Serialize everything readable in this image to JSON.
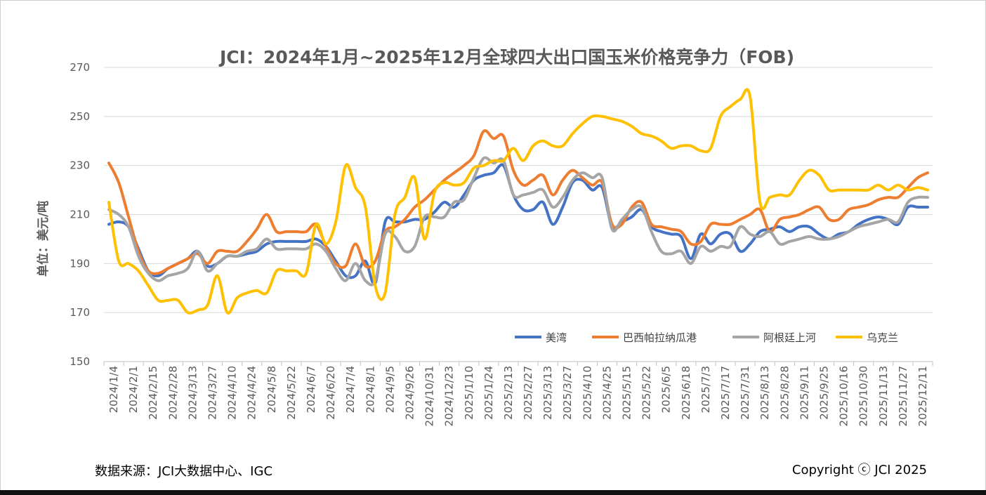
{
  "chart_data": {
    "type": "line",
    "title": "JCI：2024年1月~2025年12月全球四大出口国玉米价格竞争力（FOB)",
    "ylabel": "单位：美元/吨",
    "ylim": [
      150,
      270
    ],
    "yticks": [
      150,
      170,
      190,
      210,
      230,
      250,
      270
    ],
    "grid": true,
    "legend_position": "bottom-right",
    "x_tick_labels": [
      "2024/1/4",
      "2024/2/1",
      "2024/2/15",
      "2024/2/28",
      "2024/3/13",
      "2024/3/27",
      "2024/4/10",
      "2024/4/24",
      "2024/5/8",
      "2024/5/22",
      "2024/6/7",
      "2024/6/20",
      "2024/7/4",
      "2024/8/1",
      "2024/9/5",
      "2024/9/26",
      "2024/10/31",
      "2024/12/23",
      "2025/1/10",
      "2025/1/24",
      "2025/2/13",
      "2025/2/27",
      "2025/3/13",
      "2025/3/27",
      "2025/4/10",
      "2025/4/25",
      "2025/5/15",
      "2025/5/22",
      "2025/6/5",
      "2025/6/18",
      "2025/7/3",
      "2025/7/17",
      "2025/7/31",
      "2025/8/13",
      "2025/8/28",
      "2025/9/11",
      "2025/9/25",
      "2025/10/16",
      "2025/10/30",
      "2025/11/13",
      "2025/11/27",
      "2025/12/11"
    ],
    "x": [
      "2024/1/4",
      "2024/1/18",
      "2024/2/1",
      "2024/2/8",
      "2024/2/15",
      "2024/2/22",
      "2024/2/28",
      "2024/3/6",
      "2024/3/13",
      "2024/3/20",
      "2024/3/27",
      "2024/4/3",
      "2024/4/10",
      "2024/4/17",
      "2024/4/24",
      "2024/5/1",
      "2024/5/8",
      "2024/5/15",
      "2024/5/22",
      "2024/5/29",
      "2024/6/7",
      "2024/6/13",
      "2024/6/20",
      "2024/6/27",
      "2024/7/4",
      "2024/7/18",
      "2024/8/1",
      "2024/8/15",
      "2024/9/5",
      "2024/9/12",
      "2024/9/26",
      "2024/10/10",
      "2024/10/31",
      "2024/11/28",
      "2024/12/23",
      "2024/12/30",
      "2025/1/10",
      "2025/1/17",
      "2025/1/24",
      "2025/2/6",
      "2025/2/13",
      "2025/2/20",
      "2025/2/27",
      "2025/3/6",
      "2025/3/13",
      "2025/3/20",
      "2025/3/27",
      "2025/4/3",
      "2025/4/10",
      "2025/4/17",
      "2025/4/25",
      "2025/5/8",
      "2025/5/15",
      "2025/5/19",
      "2025/5/22",
      "2025/5/29",
      "2025/6/5",
      "2025/6/12",
      "2025/6/18",
      "2025/6/26",
      "2025/7/3",
      "2025/7/10",
      "2025/7/17",
      "2025/7/24",
      "2025/7/31",
      "2025/8/7",
      "2025/8/13",
      "2025/8/21",
      "2025/8/28",
      "2025/9/4",
      "2025/9/11",
      "2025/9/18",
      "2025/9/25",
      "2025/10/9",
      "2025/10/16",
      "2025/10/23",
      "2025/10/30",
      "2025/11/6",
      "2025/11/13",
      "2025/11/20",
      "2025/11/27",
      "2025/12/4",
      "2025/12/11",
      "2025/12/18"
    ],
    "series": [
      {
        "name": "美湾",
        "color": "#4472C4",
        "values": [
          206,
          207,
          205,
          196,
          187,
          185,
          188,
          190,
          192,
          195,
          189,
          190,
          193,
          193,
          194,
          195,
          198,
          199,
          199,
          199,
          199,
          200,
          197,
          191,
          185,
          185,
          191,
          182,
          207,
          207,
          207,
          208,
          208,
          211,
          215,
          213,
          218,
          224,
          226,
          227,
          230,
          218,
          212,
          212,
          215,
          206,
          213,
          223,
          224,
          220,
          221,
          205,
          207,
          209,
          212,
          205,
          203,
          202,
          201,
          192,
          202,
          198,
          202,
          202,
          195,
          198,
          203,
          204,
          205,
          203,
          205,
          205,
          202,
          200,
          202,
          203,
          206,
          208,
          209,
          208,
          206,
          213,
          213,
          213
        ]
      },
      {
        "name": "巴西帕拉纳瓜港",
        "color": "#ED7D31",
        "values": [
          231,
          223,
          209,
          195,
          187,
          186,
          188,
          190,
          192,
          194,
          190,
          195,
          195,
          195,
          199,
          204,
          210,
          203,
          203,
          203,
          203,
          206,
          197,
          190,
          189,
          198,
          189,
          191,
          203,
          205,
          208,
          213,
          216,
          220,
          224,
          227,
          230,
          234,
          244,
          241,
          242,
          228,
          222,
          224,
          226,
          218,
          224,
          228,
          225,
          222,
          223,
          206,
          206,
          213,
          215,
          206,
          205,
          204,
          203,
          198,
          199,
          206,
          206,
          206,
          208,
          210,
          212,
          203,
          208,
          209,
          210,
          212,
          213,
          208,
          208,
          212,
          213,
          214,
          216,
          217,
          217,
          221,
          225,
          227
        ]
      },
      {
        "name": "阿根廷上河",
        "color": "#A5A5A5",
        "values": [
          212,
          210,
          205,
          193,
          186,
          183,
          185,
          186,
          188,
          195,
          187,
          190,
          193,
          193,
          195,
          196,
          200,
          196,
          196,
          196,
          196,
          198,
          195,
          188,
          183,
          190,
          183,
          183,
          202,
          201,
          195,
          197,
          209,
          209,
          209,
          215,
          216,
          225,
          233,
          231,
          232,
          218,
          218,
          219,
          220,
          213,
          217,
          224,
          227,
          225,
          225,
          204,
          208,
          212,
          213,
          203,
          195,
          194,
          195,
          190,
          197,
          195,
          197,
          197,
          205,
          202,
          201,
          203,
          198,
          199,
          200,
          201,
          200,
          200,
          201,
          203,
          205,
          206,
          207,
          208,
          207,
          215,
          217,
          217
        ]
      },
      {
        "name": "乌克兰",
        "color": "#FFC000",
        "values": [
          215,
          191,
          190,
          187,
          181,
          175,
          175,
          175,
          170,
          171,
          173,
          185,
          170,
          176,
          178,
          179,
          178,
          187,
          187,
          187,
          186,
          206,
          198,
          207,
          230,
          221,
          213,
          181,
          178,
          210,
          217,
          225,
          200,
          219,
          223,
          222,
          223,
          229,
          230,
          232,
          232,
          237,
          232,
          238,
          240,
          238,
          238,
          243,
          247,
          250,
          250,
          249,
          248,
          246,
          243,
          242,
          240,
          237,
          238,
          238,
          236,
          237,
          250,
          254,
          257,
          258,
          215,
          217,
          218,
          218,
          224,
          228,
          226,
          220,
          220,
          220,
          220,
          220,
          222,
          220,
          222,
          220,
          221,
          220
        ]
      }
    ]
  },
  "footer": {
    "source": "数据来源：JCI大数据中心、IGC",
    "copyright": "Copyright ⓒ JCI 2025"
  }
}
